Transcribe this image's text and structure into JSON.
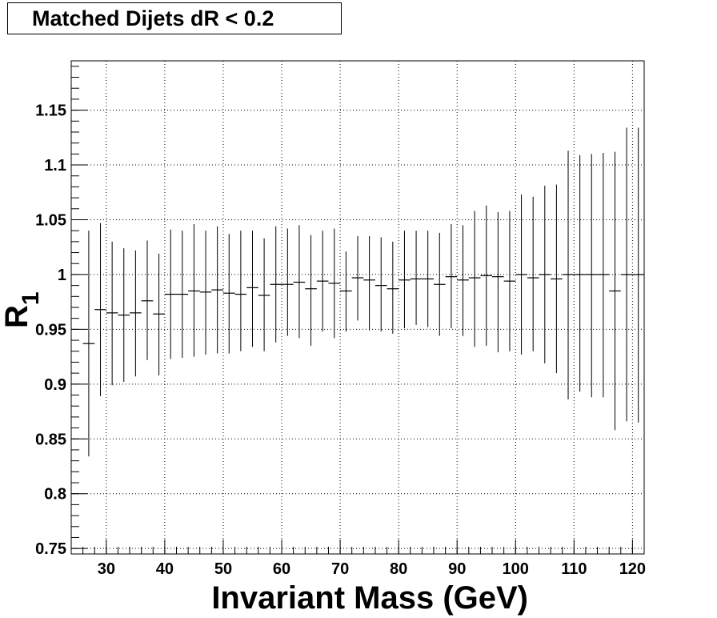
{
  "chart_data": {
    "type": "scatter",
    "title": "Matched Dijets dR < 0.2",
    "xlabel": "Invariant Mass (GeV)",
    "ylabel": "R",
    "ylabel_subscript": "1",
    "xlim": [
      24,
      122
    ],
    "ylim": [
      0.745,
      1.195
    ],
    "grid": true,
    "x_tick_labels": [
      "30",
      "40",
      "50",
      "60",
      "70",
      "80",
      "90",
      "100",
      "110",
      "120"
    ],
    "y_tick_labels": [
      "0.75",
      "0.8",
      "0.85",
      "0.9",
      "0.95",
      "1",
      "1.05",
      "1.1",
      "1.15"
    ],
    "bin_width": 2,
    "series": [
      {
        "x": [
          27,
          29,
          31,
          33,
          35,
          37,
          39,
          41,
          43,
          45,
          47,
          49,
          51,
          53,
          55,
          57,
          59,
          61,
          63,
          65,
          67,
          69,
          71,
          73,
          75,
          77,
          79,
          81,
          83,
          85,
          87,
          89,
          91,
          93,
          95,
          97,
          99,
          101,
          103,
          105,
          107,
          109,
          111,
          113,
          115,
          117,
          119,
          121
        ],
        "y": [
          0.937,
          0.968,
          0.965,
          0.963,
          0.965,
          0.976,
          0.964,
          0.982,
          0.982,
          0.985,
          0.984,
          0.986,
          0.983,
          0.982,
          0.988,
          0.981,
          0.991,
          0.991,
          0.993,
          0.987,
          0.994,
          0.992,
          0.985,
          0.997,
          0.995,
          0.99,
          0.987,
          0.995,
          0.996,
          0.996,
          0.991,
          0.998,
          0.995,
          0.997,
          0.999,
          0.998,
          0.994,
          1.0,
          0.997,
          1.0,
          0.996,
          1.0,
          1.0,
          1.0,
          1.0,
          0.985,
          1.0,
          1.0
        ],
        "yerr_low": [
          0.103,
          0.079,
          0.066,
          0.061,
          0.058,
          0.054,
          0.056,
          0.059,
          0.058,
          0.06,
          0.057,
          0.058,
          0.055,
          0.052,
          0.054,
          0.051,
          0.053,
          0.047,
          0.051,
          0.052,
          0.046,
          0.05,
          0.037,
          0.039,
          0.046,
          0.042,
          0.041,
          0.044,
          0.042,
          0.044,
          0.047,
          0.047,
          0.051,
          0.063,
          0.064,
          0.069,
          0.064,
          0.073,
          0.067,
          0.081,
          0.086,
          0.114,
          0.107,
          0.112,
          0.112,
          0.127,
          0.134,
          0.135
        ],
        "yerr_high": [
          0.103,
          0.079,
          0.065,
          0.061,
          0.057,
          0.055,
          0.055,
          0.059,
          0.058,
          0.061,
          0.056,
          0.058,
          0.054,
          0.058,
          0.052,
          0.052,
          0.053,
          0.051,
          0.052,
          0.049,
          0.046,
          0.05,
          0.036,
          0.038,
          0.04,
          0.044,
          0.043,
          0.045,
          0.044,
          0.044,
          0.047,
          0.048,
          0.05,
          0.061,
          0.064,
          0.059,
          0.064,
          0.073,
          0.074,
          0.081,
          0.086,
          0.113,
          0.109,
          0.11,
          0.111,
          0.127,
          0.134,
          0.134
        ]
      }
    ]
  }
}
